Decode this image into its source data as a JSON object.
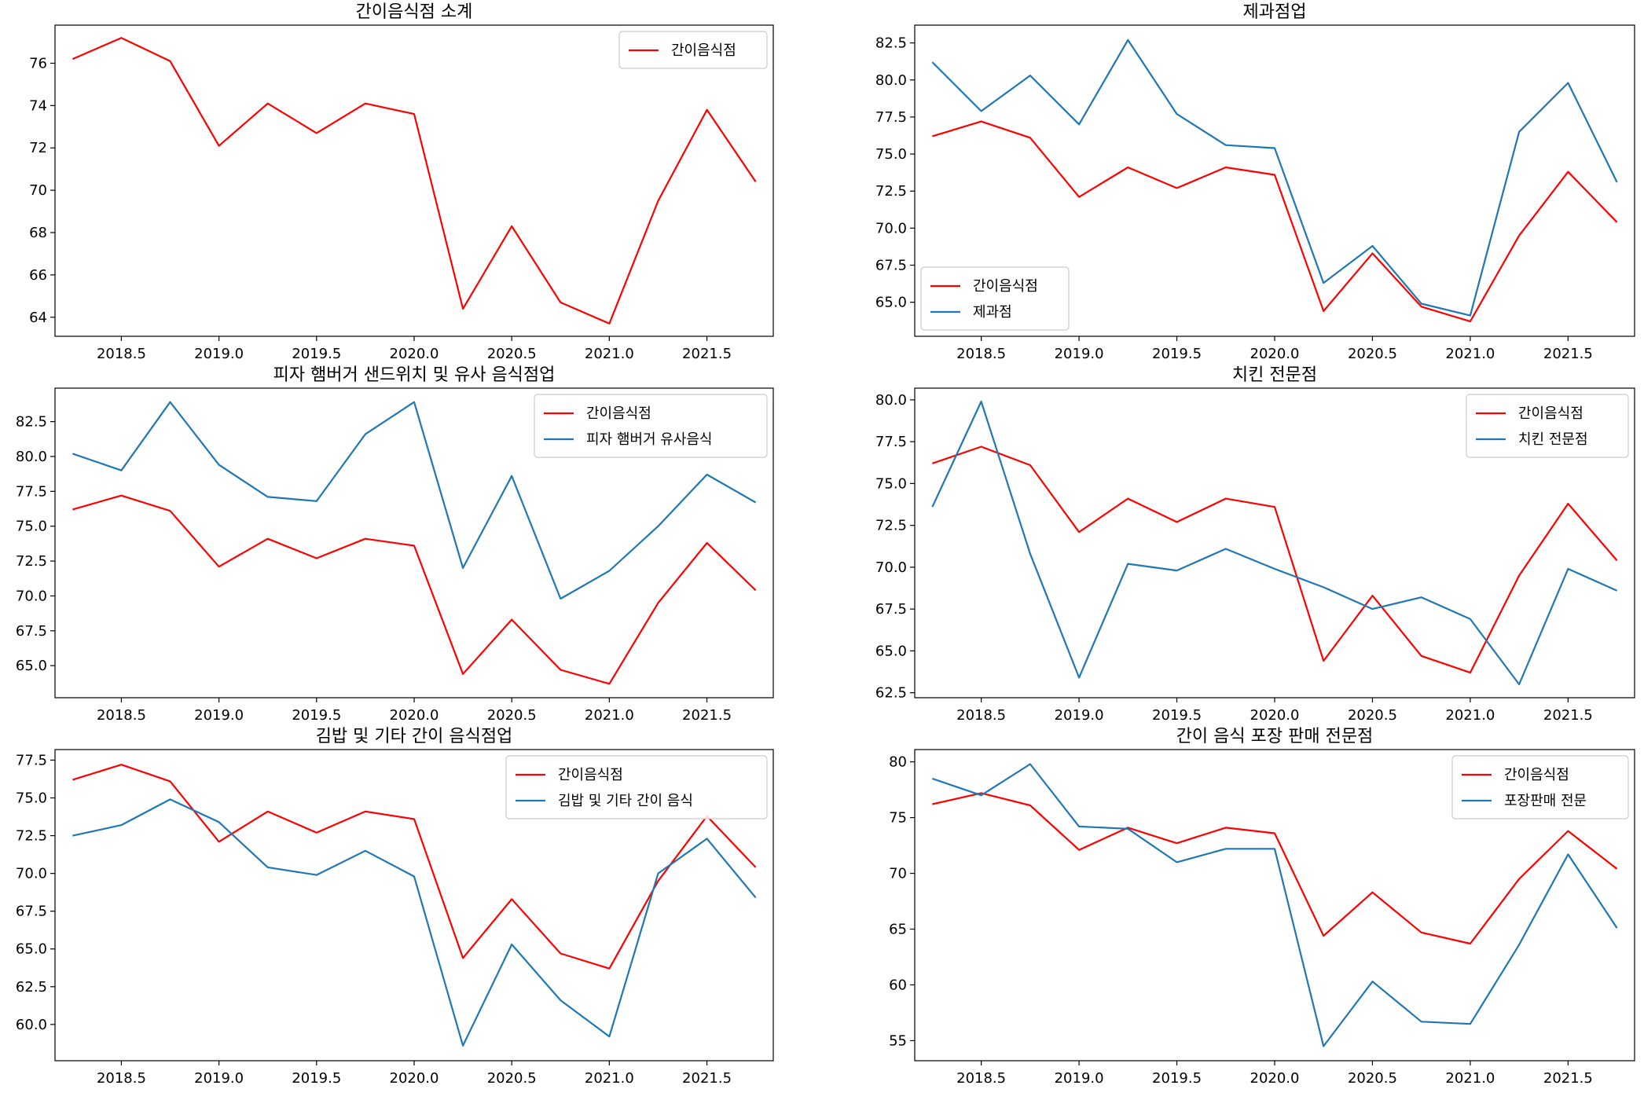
{
  "chart_data": [
    {
      "type": "line",
      "title": "간이음식점 소계",
      "x": [
        2018.25,
        2018.5,
        2018.75,
        2019.0,
        2019.25,
        2019.5,
        2019.75,
        2020.0,
        2020.25,
        2020.5,
        2020.75,
        2021.0,
        2021.25,
        2021.5,
        2021.75
      ],
      "xticks": [
        "2018.5",
        "2019.0",
        "2019.5",
        "2020.0",
        "2020.5",
        "2021.0",
        "2021.5"
      ],
      "xlim": [
        2018.16,
        2021.84
      ],
      "ylim": [
        63.1,
        77.8
      ],
      "yticks": [
        "64",
        "66",
        "68",
        "70",
        "72",
        "74",
        "76"
      ],
      "legend": "upper-right",
      "series": [
        {
          "name": "간이음식점",
          "color": "#ff0000",
          "values": [
            76.2,
            77.2,
            76.1,
            72.1,
            74.1,
            72.7,
            74.1,
            73.6,
            64.4,
            68.3,
            64.7,
            63.7,
            69.5,
            73.8,
            70.4
          ]
        }
      ]
    },
    {
      "type": "line",
      "title": "제과점업",
      "x": [
        2018.25,
        2018.5,
        2018.75,
        2019.0,
        2019.25,
        2019.5,
        2019.75,
        2020.0,
        2020.25,
        2020.5,
        2020.75,
        2021.0,
        2021.25,
        2021.5,
        2021.75
      ],
      "xticks": [
        "2018.5",
        "2019.0",
        "2019.5",
        "2020.0",
        "2020.5",
        "2021.0",
        "2021.5"
      ],
      "xlim": [
        2018.16,
        2021.84
      ],
      "ylim": [
        62.7,
        83.7
      ],
      "yticks": [
        "65.0",
        "67.5",
        "70.0",
        "72.5",
        "75.0",
        "77.5",
        "80.0",
        "82.5"
      ],
      "legend": "lower-left",
      "series": [
        {
          "name": "간이음식점",
          "color": "#ff0000",
          "values": [
            76.2,
            77.2,
            76.1,
            72.1,
            74.1,
            72.7,
            74.1,
            73.6,
            64.4,
            68.3,
            64.7,
            63.7,
            69.5,
            73.8,
            70.4
          ]
        },
        {
          "name": "제과점",
          "color": "#1f77b4",
          "values": [
            81.2,
            77.9,
            80.3,
            77.0,
            82.7,
            77.7,
            75.6,
            75.4,
            66.3,
            68.8,
            64.9,
            64.1,
            76.5,
            79.8,
            73.1
          ]
        }
      ]
    },
    {
      "type": "line",
      "title": "피자 햄버거 샌드위치 및 유사 음식점업",
      "x": [
        2018.25,
        2018.5,
        2018.75,
        2019.0,
        2019.25,
        2019.5,
        2019.75,
        2020.0,
        2020.25,
        2020.5,
        2020.75,
        2021.0,
        2021.25,
        2021.5,
        2021.75
      ],
      "xticks": [
        "2018.5",
        "2019.0",
        "2019.5",
        "2020.0",
        "2020.5",
        "2021.0",
        "2021.5"
      ],
      "xlim": [
        2018.16,
        2021.84
      ],
      "ylim": [
        62.7,
        84.9
      ],
      "yticks": [
        "65.0",
        "67.5",
        "70.0",
        "72.5",
        "75.0",
        "77.5",
        "80.0",
        "82.5"
      ],
      "legend": "upper-right",
      "series": [
        {
          "name": "간이음식점",
          "color": "#ff0000",
          "values": [
            76.2,
            77.2,
            76.1,
            72.1,
            74.1,
            72.7,
            74.1,
            73.6,
            64.4,
            68.3,
            64.7,
            63.7,
            69.5,
            73.8,
            70.4
          ]
        },
        {
          "name": "피자 햄버거 유사음식",
          "color": "#1f77b4",
          "values": [
            80.2,
            79.0,
            83.9,
            79.4,
            77.1,
            76.8,
            81.6,
            83.9,
            72.0,
            78.6,
            69.8,
            71.8,
            75.0,
            78.7,
            76.7
          ]
        }
      ]
    },
    {
      "type": "line",
      "title": "치킨 전문점",
      "x": [
        2018.25,
        2018.5,
        2018.75,
        2019.0,
        2019.25,
        2019.5,
        2019.75,
        2020.0,
        2020.25,
        2020.5,
        2020.75,
        2021.0,
        2021.25,
        2021.5,
        2021.75
      ],
      "xticks": [
        "2018.5",
        "2019.0",
        "2019.5",
        "2020.0",
        "2020.5",
        "2021.0",
        "2021.5"
      ],
      "xlim": [
        2018.16,
        2021.84
      ],
      "ylim": [
        62.2,
        80.7
      ],
      "yticks": [
        "62.5",
        "65.0",
        "67.5",
        "70.0",
        "72.5",
        "75.0",
        "77.5",
        "80.0"
      ],
      "legend": "upper-right",
      "series": [
        {
          "name": "간이음식점",
          "color": "#ff0000",
          "values": [
            76.2,
            77.2,
            76.1,
            72.1,
            74.1,
            72.7,
            74.1,
            73.6,
            64.4,
            68.3,
            64.7,
            63.7,
            69.5,
            73.8,
            70.4
          ]
        },
        {
          "name": "치킨 전문점",
          "color": "#1f77b4",
          "values": [
            73.6,
            79.9,
            70.8,
            63.4,
            70.2,
            69.8,
            71.1,
            69.9,
            68.8,
            67.5,
            68.2,
            66.9,
            63.0,
            69.9,
            68.6
          ]
        }
      ]
    },
    {
      "type": "line",
      "title": "김밥 및 기타 간이 음식점업",
      "x": [
        2018.25,
        2018.5,
        2018.75,
        2019.0,
        2019.25,
        2019.5,
        2019.75,
        2020.0,
        2020.25,
        2020.5,
        2020.75,
        2021.0,
        2021.25,
        2021.5,
        2021.75
      ],
      "xticks": [
        "2018.5",
        "2019.0",
        "2019.5",
        "2020.0",
        "2020.5",
        "2021.0",
        "2021.5"
      ],
      "xlim": [
        2018.16,
        2021.84
      ],
      "ylim": [
        57.6,
        78.2
      ],
      "yticks": [
        "60.0",
        "62.5",
        "65.0",
        "67.5",
        "70.0",
        "72.5",
        "75.0",
        "77.5"
      ],
      "legend": "upper-right",
      "series": [
        {
          "name": "간이음식점",
          "color": "#ff0000",
          "values": [
            76.2,
            77.2,
            76.1,
            72.1,
            74.1,
            72.7,
            74.1,
            73.6,
            64.4,
            68.3,
            64.7,
            63.7,
            69.5,
            73.8,
            70.4
          ]
        },
        {
          "name": "김밥 및 기타 간이 음식",
          "color": "#1f77b4",
          "values": [
            72.5,
            73.2,
            74.9,
            73.4,
            70.4,
            69.9,
            71.5,
            69.8,
            58.6,
            65.3,
            61.6,
            59.2,
            70.0,
            72.3,
            68.4
          ]
        }
      ]
    },
    {
      "type": "line",
      "title": "간이 음식 포장 판매 전문점",
      "x": [
        2018.25,
        2018.5,
        2018.75,
        2019.0,
        2019.25,
        2019.5,
        2019.75,
        2020.0,
        2020.25,
        2020.5,
        2020.75,
        2021.0,
        2021.25,
        2021.5,
        2021.75
      ],
      "xticks": [
        "2018.5",
        "2019.0",
        "2019.5",
        "2020.0",
        "2020.5",
        "2021.0",
        "2021.5"
      ],
      "xlim": [
        2018.16,
        2021.84
      ],
      "ylim": [
        53.2,
        81.1
      ],
      "yticks": [
        "55",
        "60",
        "65",
        "70",
        "75",
        "80"
      ],
      "legend": "upper-right",
      "series": [
        {
          "name": "간이음식점",
          "color": "#ff0000",
          "values": [
            76.2,
            77.2,
            76.1,
            72.1,
            74.1,
            72.7,
            74.1,
            73.6,
            64.4,
            68.3,
            64.7,
            63.7,
            69.5,
            73.8,
            70.4
          ]
        },
        {
          "name": "포장판매 전문",
          "color": "#1f77b4",
          "values": [
            78.5,
            77.0,
            79.8,
            74.2,
            74.0,
            71.0,
            72.2,
            72.2,
            54.5,
            60.3,
            56.7,
            56.5,
            63.6,
            71.7,
            65.1
          ]
        }
      ]
    }
  ]
}
